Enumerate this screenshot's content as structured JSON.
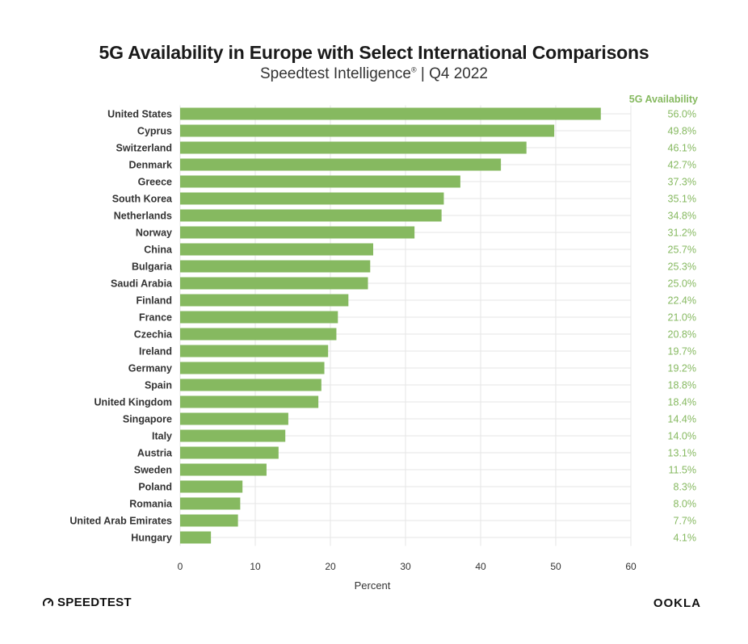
{
  "title": "5G Availability in Europe with Select International Comparisons",
  "subtitle": {
    "main": "Speedtest Intelligence",
    "registered": "®",
    "suffix": " | Q4 2022"
  },
  "colors": {
    "bar": "#86b960",
    "value_label": "#86b960",
    "grid": "#e6e6e6",
    "axis_text": "#333333"
  },
  "chart_data": {
    "type": "bar",
    "orientation": "horizontal",
    "categories": [
      "United States",
      "Cyprus",
      "Switzerland",
      "Denmark",
      "Greece",
      "South Korea",
      "Netherlands",
      "Norway",
      "China",
      "Bulgaria",
      "Saudi Arabia",
      "Finland",
      "France",
      "Czechia",
      "Ireland",
      "Germany",
      "Spain",
      "United Kingdom",
      "Singapore",
      "Italy",
      "Austria",
      "Sweden",
      "Poland",
      "Romania",
      "United Arab Emirates",
      "Hungary"
    ],
    "series": [
      {
        "name": "5G Availability",
        "values": [
          56.0,
          49.8,
          46.1,
          42.7,
          37.3,
          35.1,
          34.8,
          31.2,
          25.7,
          25.3,
          25.0,
          22.4,
          21.0,
          20.8,
          19.7,
          19.2,
          18.8,
          18.4,
          14.4,
          14.0,
          13.1,
          11.5,
          8.3,
          8.0,
          7.7,
          4.1
        ]
      }
    ],
    "value_labels": [
      "56.0%",
      "49.8%",
      "46.1%",
      "42.7%",
      "37.3%",
      "35.1%",
      "34.8%",
      "31.2%",
      "25.7%",
      "25.3%",
      "25.0%",
      "22.4%",
      "21.0%",
      "20.8%",
      "19.7%",
      "19.2%",
      "18.8%",
      "18.4%",
      "14.4%",
      "14.0%",
      "13.1%",
      "11.5%",
      "8.3%",
      "8.0%",
      "7.7%",
      "4.1%"
    ],
    "value_column_header": "5G Availability",
    "xlabel": "Percent",
    "ylabel": "",
    "xlim": [
      0,
      60
    ],
    "xticks": [
      0,
      10,
      20,
      30,
      40,
      50,
      60
    ],
    "grid": true
  },
  "logos": {
    "left": "SPEEDTEST",
    "right": "OOKLA"
  }
}
